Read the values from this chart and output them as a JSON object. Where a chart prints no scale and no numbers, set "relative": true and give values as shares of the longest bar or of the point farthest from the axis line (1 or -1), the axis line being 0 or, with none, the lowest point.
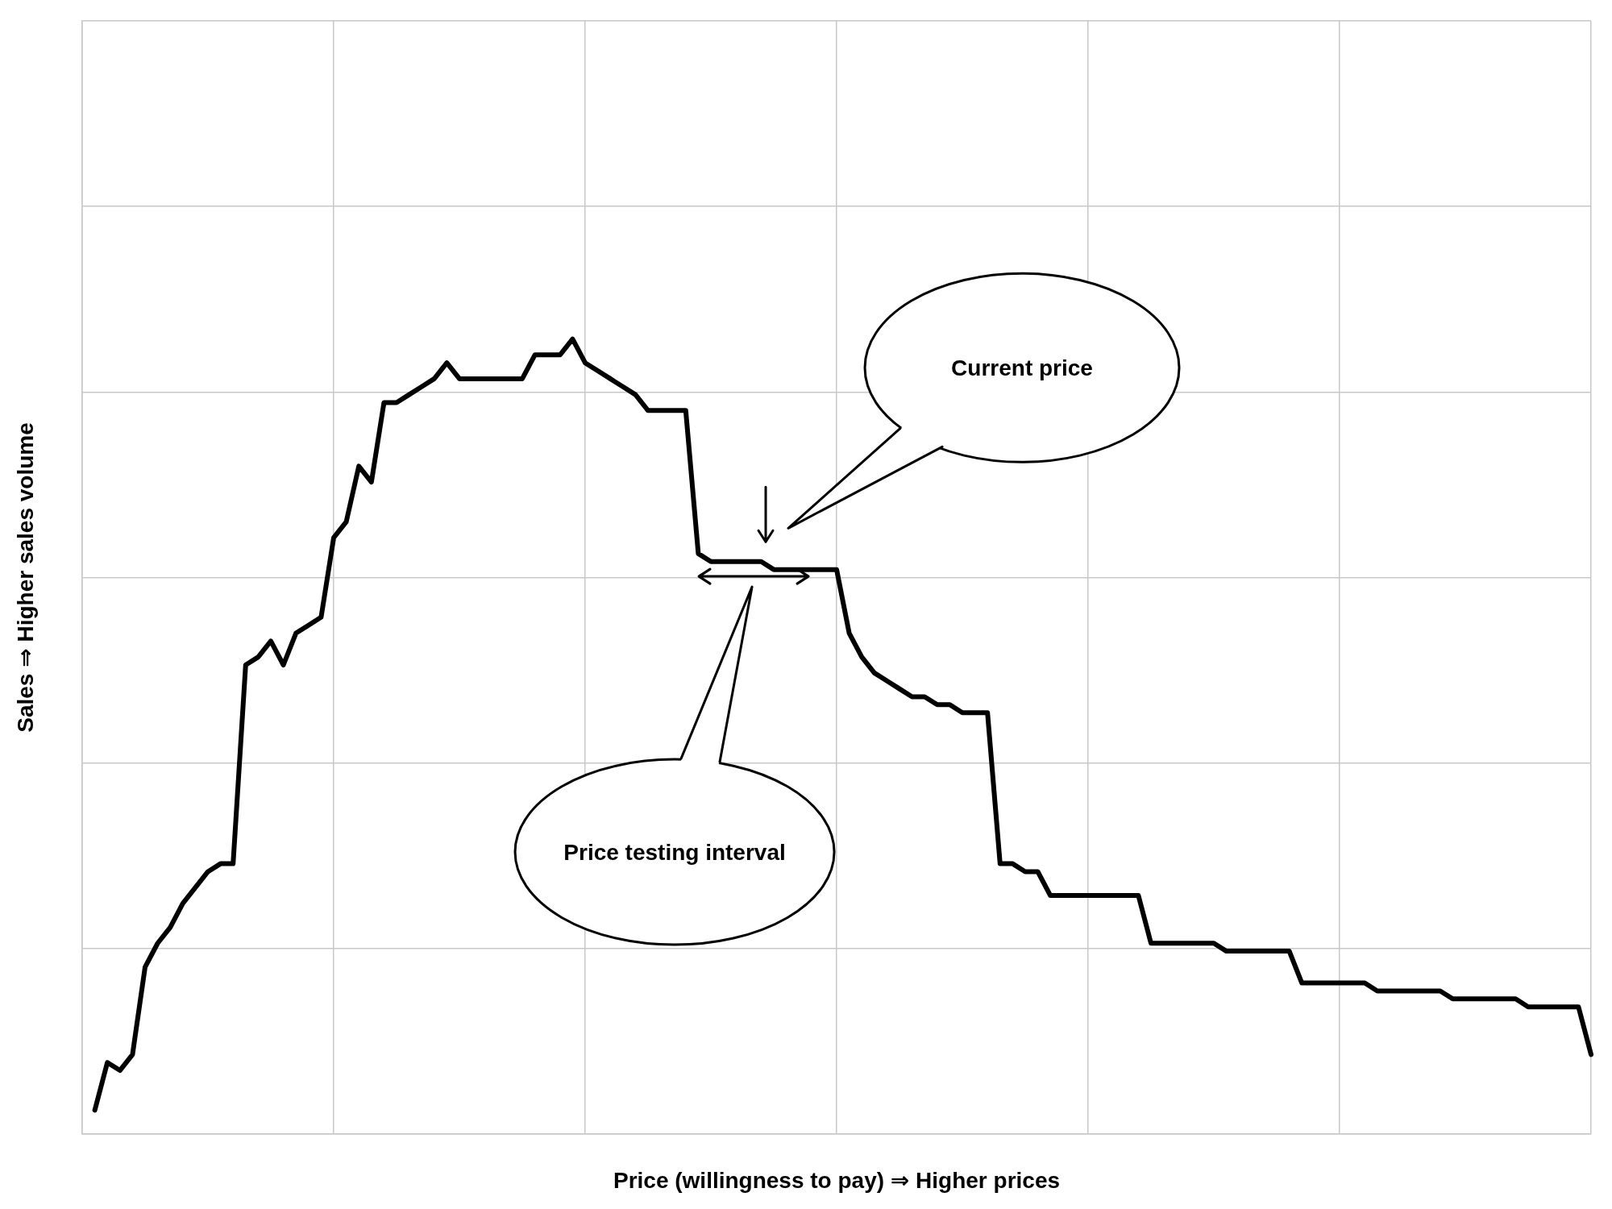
{
  "chart_data": {
    "type": "line",
    "xlabel": "Price (willingness to pay) ⇒ Higher prices",
    "ylabel": "Sales ⇒ Higher sales volume",
    "relative": true,
    "color": "#000000",
    "grid": true,
    "categories": [
      null,
      null,
      null,
      null,
      null,
      null,
      null,
      null,
      null,
      null,
      null,
      null,
      null,
      null,
      null,
      null,
      null,
      null,
      null,
      null,
      null,
      null,
      null,
      null,
      null,
      null,
      null,
      null,
      null,
      null,
      null,
      null,
      null,
      null,
      null,
      null,
      null,
      null,
      null,
      null,
      null,
      null,
      null,
      null,
      null,
      null,
      null,
      null,
      null,
      null,
      null,
      null,
      null,
      null,
      null,
      null,
      null,
      null,
      null,
      null,
      null,
      null,
      null,
      null,
      null,
      null,
      null,
      null,
      null,
      null,
      null,
      null,
      null,
      null,
      null,
      null,
      null,
      null,
      null,
      null,
      null,
      null,
      null,
      null,
      null,
      null,
      null,
      null,
      null,
      null,
      null,
      null,
      null,
      null,
      null,
      null,
      null,
      null,
      null,
      null,
      null,
      null,
      null,
      null,
      null,
      null,
      null,
      null,
      null,
      null,
      null,
      null,
      null,
      null,
      null,
      null,
      null,
      null,
      null,
      null,
      null
    ],
    "values": [
      null,
      0.03,
      0.09,
      0.08,
      0.1,
      0.21,
      0.24,
      0.26,
      0.29,
      0.31,
      0.33,
      0.34,
      0.34,
      0.59,
      0.6,
      0.62,
      0.59,
      0.63,
      0.64,
      0.65,
      0.75,
      0.77,
      0.84,
      0.82,
      0.92,
      0.92,
      0.93,
      0.94,
      0.95,
      0.97,
      0.95,
      0.95,
      0.95,
      0.95,
      0.95,
      0.95,
      0.98,
      0.98,
      0.98,
      1,
      0.97,
      0.96,
      0.95,
      0.94,
      0.93,
      0.91,
      0.91,
      0.91,
      0.91,
      0.73,
      0.72,
      0.72,
      0.72,
      0.72,
      0.72,
      0.71,
      0.71,
      0.71,
      0.71,
      0.71,
      0.71,
      0.63,
      0.6,
      0.58,
      0.57,
      0.56,
      0.55,
      0.55,
      0.54,
      0.54,
      0.53,
      0.53,
      0.53,
      0.34,
      0.34,
      0.33,
      0.33,
      0.3,
      0.3,
      0.3,
      0.3,
      0.3,
      0.3,
      0.3,
      0.3,
      0.24,
      0.24,
      0.24,
      0.24,
      0.24,
      0.24,
      0.23,
      0.23,
      0.23,
      0.23,
      0.23,
      0.23,
      0.19,
      0.19,
      0.19,
      0.19,
      0.19,
      0.19,
      0.18,
      0.18,
      0.18,
      0.18,
      0.18,
      0.18,
      0.17,
      0.17,
      0.17,
      0.17,
      0.17,
      0.17,
      0.16,
      0.16,
      0.16,
      0.16,
      0.16,
      0.1
    ],
    "annotations": [
      "Current price",
      "Price testing interval"
    ]
  }
}
